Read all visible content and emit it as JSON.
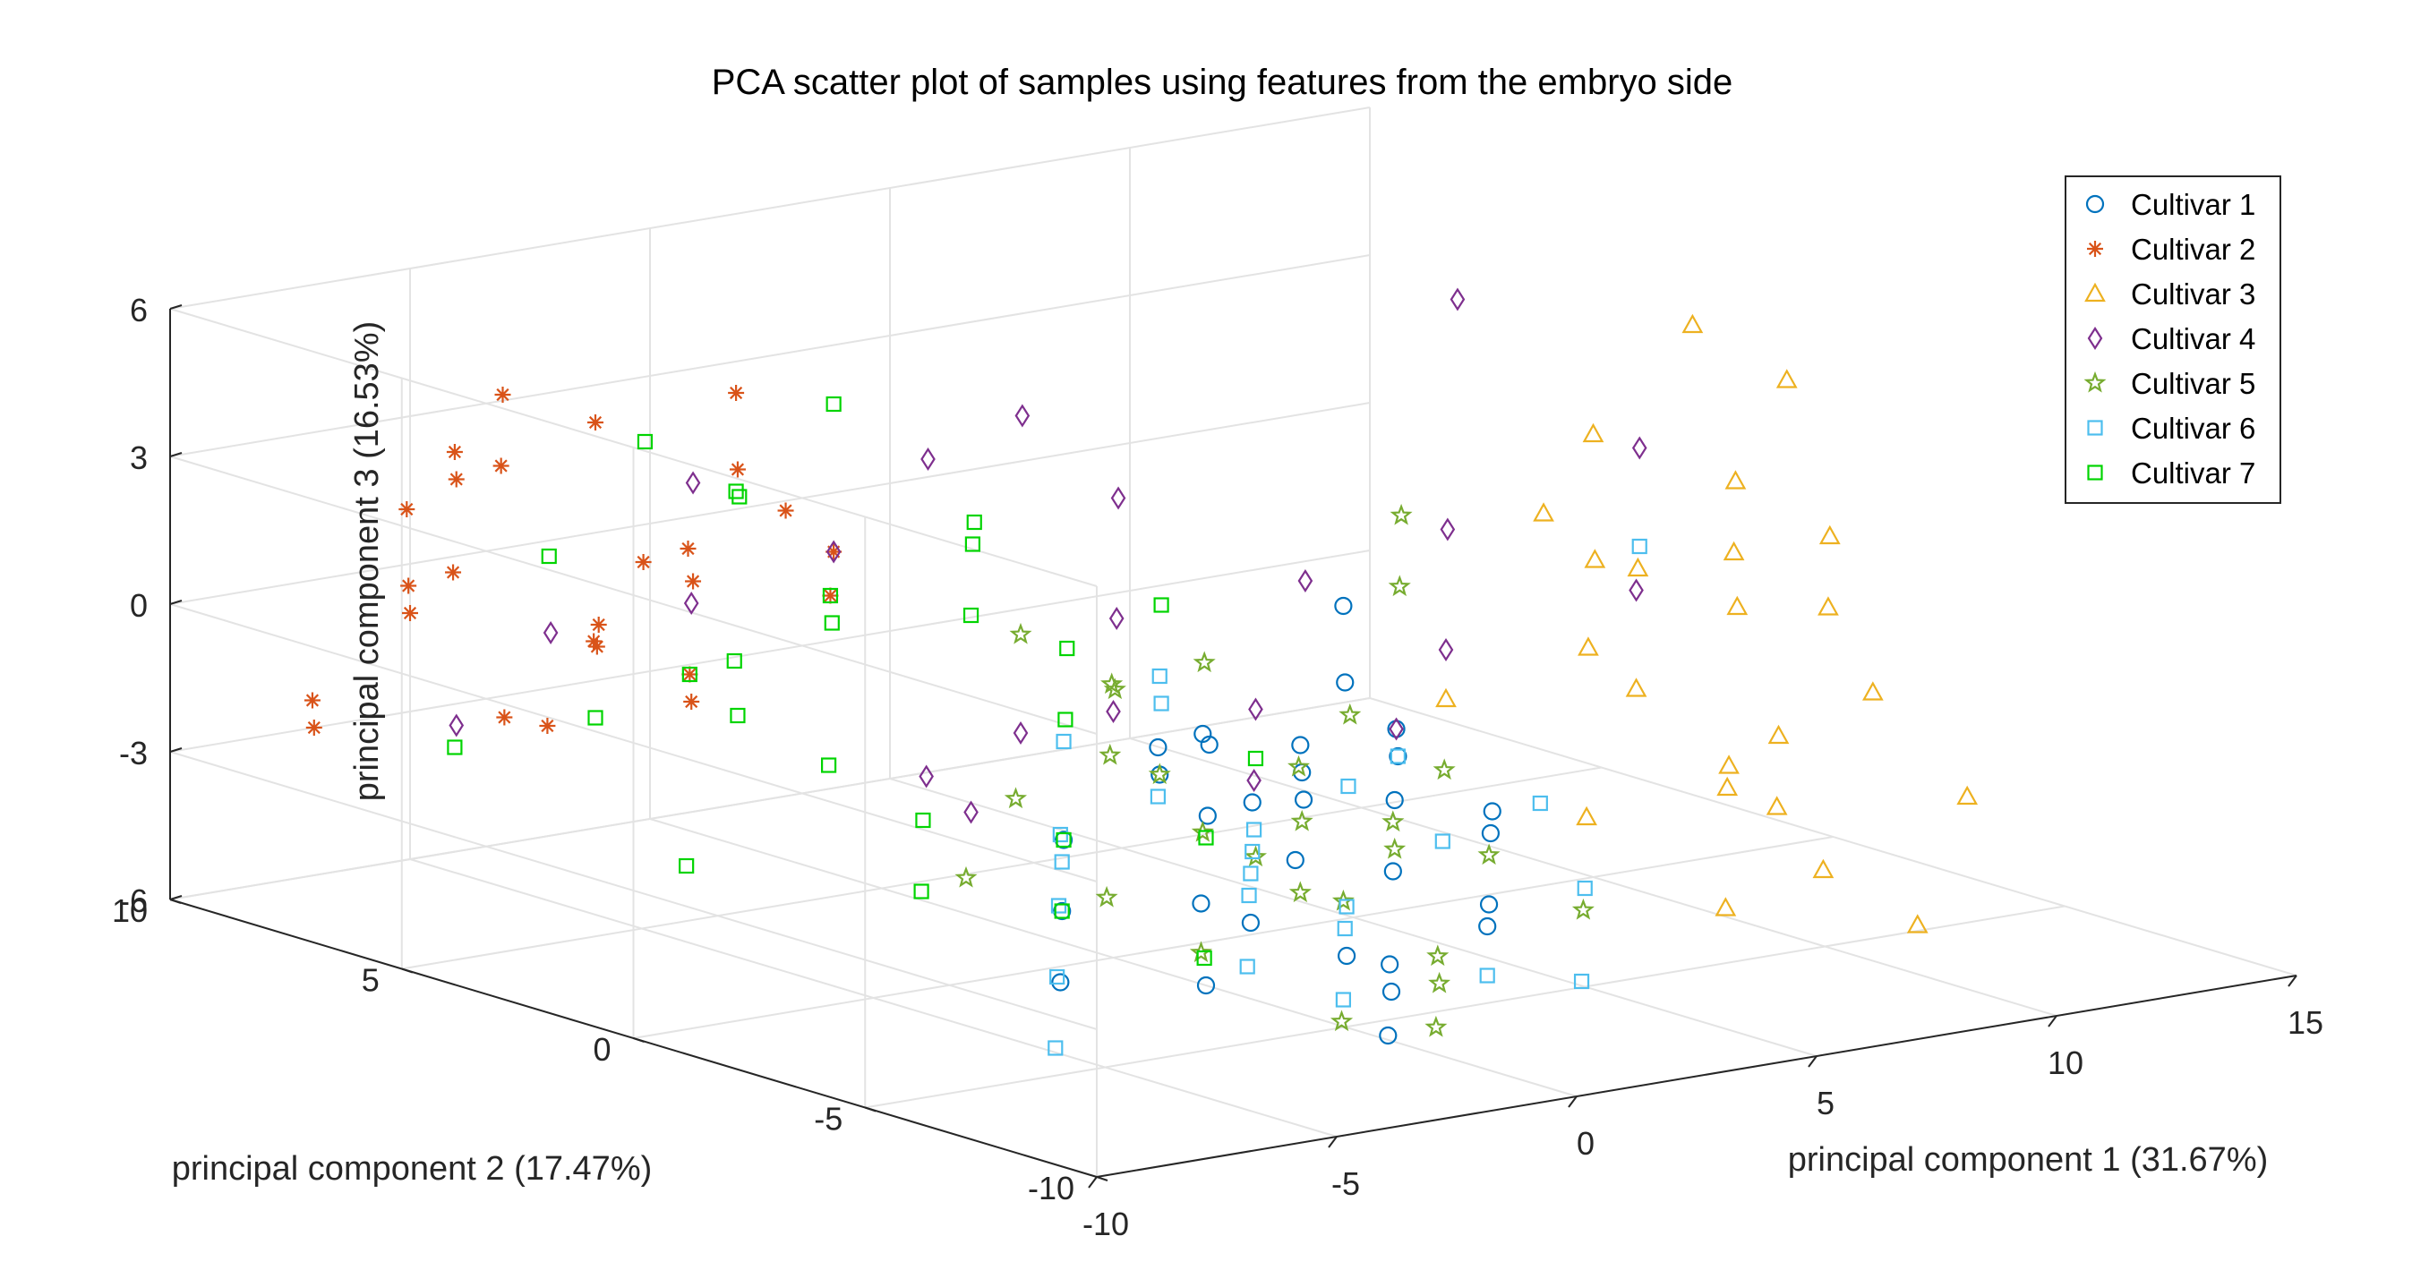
{
  "chart_data": {
    "type": "scatter",
    "title": "PCA scatter plot of samples using features from the embryo side",
    "xlabel": "principal component 1 (31.67%)",
    "ylabel": "principal component 2 (17.47%)",
    "zlabel": "principal component 3 (16.53%)",
    "xlim": [
      -10,
      15
    ],
    "ylim": [
      -10,
      10
    ],
    "zlim": [
      -6,
      6
    ],
    "xticks": [
      -10,
      -5,
      0,
      5,
      10,
      15
    ],
    "yticks": [
      -10,
      -5,
      0,
      5,
      10
    ],
    "zticks": [
      -6,
      -3,
      0,
      3,
      6
    ],
    "grid": true,
    "legend_position": "top-right",
    "series": [
      {
        "name": "Cultivar 1",
        "marker": "circle",
        "color": "#0072BD",
        "points": [
          [
            -1,
            -6,
            3
          ],
          [
            0,
            -5,
            1
          ],
          [
            -2,
            -4,
            0
          ],
          [
            1,
            -3,
            -1
          ],
          [
            2,
            -4,
            -2
          ],
          [
            -1,
            -2,
            -1
          ],
          [
            0,
            -3,
            -2
          ],
          [
            1,
            -5,
            -3
          ],
          [
            2,
            -2,
            -2
          ],
          [
            3,
            -3,
            -1
          ],
          [
            -2,
            -6,
            -2
          ],
          [
            -3,
            -5,
            -3
          ],
          [
            0,
            -1,
            -2
          ],
          [
            1,
            -1,
            -3
          ],
          [
            2,
            -6,
            -4
          ],
          [
            3,
            -1,
            -3
          ],
          [
            4,
            -2,
            -2
          ],
          [
            -1,
            -4,
            -4
          ],
          [
            0,
            -6,
            -5
          ],
          [
            -2,
            -1,
            -3
          ],
          [
            1,
            -4,
            -5
          ],
          [
            2,
            0,
            -2
          ],
          [
            -3,
            -2,
            -4
          ],
          [
            -4,
            -3,
            -5
          ],
          [
            3,
            -5,
            -4
          ],
          [
            4,
            -4,
            -3
          ],
          [
            5,
            -3,
            -3
          ],
          [
            0,
            -2,
            -6
          ],
          [
            -1,
            -7,
            -4
          ],
          [
            -2,
            -8,
            -5
          ]
        ]
      },
      {
        "name": "Cultivar 2",
        "marker": "asterisk",
        "color": "#D95319",
        "points": [
          [
            -4,
            4,
            5
          ],
          [
            -5,
            6,
            4
          ],
          [
            -6,
            8,
            3
          ],
          [
            -5,
            9,
            2
          ],
          [
            -3,
            5,
            3
          ],
          [
            -7,
            7,
            1
          ],
          [
            -6,
            5,
            0
          ],
          [
            -4,
            7,
            -1
          ],
          [
            -5,
            4,
            2
          ],
          [
            -3,
            8,
            -1
          ],
          [
            -8,
            9,
            -2
          ],
          [
            -7,
            10,
            -3
          ],
          [
            -6,
            9,
            0
          ],
          [
            -4,
            6,
            1
          ],
          [
            -2,
            5,
            2
          ],
          [
            -5,
            8,
            4
          ],
          [
            -3,
            3,
            1
          ],
          [
            -6,
            6,
            -2
          ],
          [
            -4,
            9,
            -3
          ],
          [
            -2,
            7,
            0
          ],
          [
            -7,
            8,
            2
          ],
          [
            -5,
            10,
            -1
          ],
          [
            -3,
            6,
            -2
          ],
          [
            -1,
            5,
            1
          ],
          [
            -6,
            7,
            3
          ],
          [
            -4,
            5,
            -1
          ]
        ]
      },
      {
        "name": "Cultivar 3",
        "marker": "triangle",
        "color": "#EDB120",
        "points": [
          [
            10,
            0,
            3
          ],
          [
            12,
            -1,
            2
          ],
          [
            9,
            -2,
            1
          ],
          [
            11,
            1,
            0
          ],
          [
            8,
            -3,
            -1
          ],
          [
            13,
            -2,
            1
          ],
          [
            10,
            -4,
            -2
          ],
          [
            9,
            -5,
            -3
          ],
          [
            12,
            -3,
            0
          ],
          [
            7,
            -6,
            -2
          ],
          [
            11,
            -5,
            -1
          ],
          [
            8,
            -1,
            2
          ],
          [
            13,
            0,
            -1
          ],
          [
            14,
            2,
            4
          ],
          [
            15,
            1,
            3
          ],
          [
            6,
            -4,
            -3
          ],
          [
            9,
            -6,
            -4
          ],
          [
            10,
            -7,
            -5
          ],
          [
            7,
            -3,
            0
          ],
          [
            12,
            -6,
            -3
          ],
          [
            11,
            -2,
            1
          ],
          [
            8,
            -5,
            -2
          ],
          [
            5,
            -2,
            -1
          ],
          [
            6,
            -7,
            -4
          ]
        ]
      },
      {
        "name": "Cultivar 4",
        "marker": "diamond",
        "color": "#7E2F8E",
        "points": [
          [
            -2,
            7,
            2
          ],
          [
            -1,
            5,
            1
          ],
          [
            0,
            4,
            3
          ],
          [
            1,
            3,
            4
          ],
          [
            3,
            3,
            2
          ],
          [
            2,
            2,
            0
          ],
          [
            4,
            0,
            1
          ],
          [
            -3,
            6,
            0
          ],
          [
            0,
            2,
            -2
          ],
          [
            2,
            -1,
            -1
          ],
          [
            5,
            -2,
            0
          ],
          [
            -4,
            8,
            -1
          ],
          [
            -1,
            3,
            -3
          ],
          [
            1,
            -2,
            -2
          ],
          [
            3,
            -3,
            -1
          ],
          [
            6,
            -1,
            2
          ],
          [
            10,
            -1,
            3
          ],
          [
            12,
            5,
            4
          ],
          [
            -2,
            1,
            -3
          ],
          [
            0,
            0,
            -1
          ],
          [
            8,
            -3,
            1
          ],
          [
            -5,
            9,
            -3
          ]
        ]
      },
      {
        "name": "Cultivar 5",
        "marker": "pentagram",
        "color": "#77AC30",
        "points": [
          [
            -1,
            -3,
            1
          ],
          [
            0,
            -4,
            -1
          ],
          [
            1,
            -5,
            -2
          ],
          [
            -2,
            -2,
            -1
          ],
          [
            -1,
            -6,
            -3
          ],
          [
            0,
            -1,
            -2
          ],
          [
            1,
            -3,
            -4
          ],
          [
            2,
            -4,
            -3
          ],
          [
            -3,
            -5,
            -4
          ],
          [
            -2,
            -7,
            -5
          ],
          [
            3,
            -2,
            -1
          ],
          [
            4,
            -3,
            -2
          ],
          [
            -4,
            -4,
            -3
          ],
          [
            0,
            -7,
            -4
          ],
          [
            -1,
            -8,
            -5
          ],
          [
            1,
            -6,
            -5
          ],
          [
            2,
            -1,
            -4
          ],
          [
            5,
            -1,
            1
          ],
          [
            -2,
            -4,
            -2
          ],
          [
            3,
            -5,
            -3
          ],
          [
            4,
            -6,
            -4
          ],
          [
            -3,
            -1,
            -2
          ],
          [
            0,
            2,
            0
          ],
          [
            1,
            1,
            -1
          ],
          [
            6,
            0,
            2
          ],
          [
            -5,
            -2,
            -3
          ],
          [
            -1,
            -1,
            0
          ],
          [
            2,
            -2,
            -3
          ]
        ]
      },
      {
        "name": "Cultivar 6",
        "marker": "square",
        "color": "#4DBEEE",
        "points": [
          [
            -1,
            -2,
            -2
          ],
          [
            0,
            -3,
            -3
          ],
          [
            1,
            -4,
            -4
          ],
          [
            -2,
            -5,
            -3
          ],
          [
            -3,
            -6,
            -4
          ],
          [
            2,
            -3,
            -2
          ],
          [
            0,
            -5,
            -4
          ],
          [
            -1,
            -6,
            -5
          ],
          [
            3,
            -4,
            -3
          ],
          [
            1,
            -2,
            -3
          ],
          [
            -4,
            -3,
            -2
          ],
          [
            -2,
            -1,
            -1
          ],
          [
            4,
            -2,
            -2
          ],
          [
            -5,
            -4,
            -3
          ],
          [
            -6,
            -5,
            -4
          ],
          [
            -7,
            -6,
            -5
          ],
          [
            2,
            -6,
            -5
          ],
          [
            3,
            -7,
            -5
          ],
          [
            0,
            -1,
            0
          ],
          [
            1,
            0,
            -1
          ],
          [
            5,
            -5,
            -4
          ],
          [
            -3,
            -2,
            -3
          ],
          [
            6,
            -3,
            -3
          ],
          [
            10,
            -1,
            1
          ],
          [
            -1,
            -4,
            -3
          ]
        ]
      },
      {
        "name": "Cultivar 7",
        "marker": "square",
        "color": "#00D400",
        "points": [
          [
            -3,
            3,
            1
          ],
          [
            -2,
            4,
            0
          ],
          [
            -4,
            5,
            -1
          ],
          [
            -1,
            2,
            2
          ],
          [
            -5,
            6,
            -2
          ],
          [
            -3,
            7,
            3
          ],
          [
            -6,
            8,
            -3
          ],
          [
            -2,
            1,
            1
          ],
          [
            -4,
            2,
            -2
          ],
          [
            -1,
            5,
            4
          ],
          [
            -5,
            3,
            0
          ],
          [
            -3,
            1,
            -3
          ],
          [
            -2,
            6,
            2
          ],
          [
            0,
            1,
            0
          ],
          [
            -4,
            4,
            3
          ],
          [
            -6,
            3,
            -4
          ],
          [
            -1,
            0,
            -1
          ],
          [
            -3,
            5,
            -2
          ],
          [
            -5,
            7,
            1
          ],
          [
            0,
            3,
            2
          ],
          [
            -2,
            -1,
            -3
          ],
          [
            1,
            0,
            1
          ],
          [
            -4,
            0,
            -4
          ],
          [
            2,
            -1,
            -2
          ],
          [
            -1,
            -3,
            -5
          ],
          [
            -3,
            -2,
            -4
          ],
          [
            0,
            -2,
            -3
          ]
        ]
      }
    ]
  }
}
